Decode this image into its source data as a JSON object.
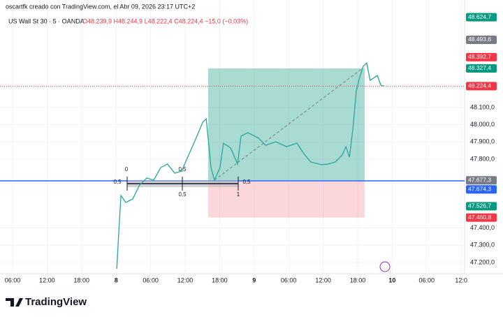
{
  "header": {
    "attribution": "oscartfk creado con TradingView.com, el Abr 09, 2026 23:17 UTC+2",
    "symbol": "US Wall St 30 · 5 · OANDA",
    "ohlc": "O48.239,9 H48.244,9 L48.222,4 C48.224,4 −15,0 (−0,03%)"
  },
  "chart_data": {
    "type": "line",
    "x": [
      3.02,
      3.08,
      3.14,
      3.28,
      3.48,
      3.68,
      3.89,
      4.09,
      4.29,
      4.49,
      4.7,
      4.9,
      5.1,
      5.3,
      5.51,
      5.61,
      5.67,
      5.75,
      5.85,
      6.01,
      6.11,
      6.32,
      6.52,
      6.62,
      6.82,
      7.13,
      7.33,
      7.63,
      7.94,
      8.24,
      8.44,
      8.64,
      8.95,
      9.15,
      9.35,
      9.55,
      9.66,
      9.76,
      9.86,
      9.96,
      10.06,
      10.16,
      10.26,
      10.36,
      10.57,
      10.67,
      10.77
    ],
    "series": [
      {
        "name": "US Wall St 30",
        "color": "#26a69a",
        "values": [
          47164,
          47386,
          47589,
          47549,
          47569,
          47650,
          47691,
          47678,
          47751,
          47772,
          47719,
          47731,
          47824,
          47914,
          48015,
          48035,
          47914,
          47751,
          47678,
          47751,
          47893,
          47865,
          47772,
          47934,
          47954,
          47922,
          47881,
          47901,
          47873,
          47893,
          47832,
          47784,
          47768,
          47772,
          47784,
          47824,
          47873,
          47812,
          47974,
          48197,
          48278,
          48339,
          48359,
          48258,
          48286,
          48230,
          48224.4
        ]
      }
    ],
    "xlim": [
      -0.2,
      12.95
    ],
    "xticks": [
      {
        "value": 0,
        "label": "06:00"
      },
      {
        "value": 1,
        "label": "12:00"
      },
      {
        "value": 2,
        "label": "18:00"
      },
      {
        "value": 3,
        "label": "8"
      },
      {
        "value": 4,
        "label": "06:00"
      },
      {
        "value": 5,
        "label": "12:00"
      },
      {
        "value": 6,
        "label": "18:00"
      },
      {
        "value": 7,
        "label": "9"
      },
      {
        "value": 8,
        "label": "06:00"
      },
      {
        "value": 9,
        "label": "12:00"
      },
      {
        "value": 10,
        "label": "18:00"
      },
      {
        "value": 11,
        "label": "10"
      },
      {
        "value": 12,
        "label": "06:00"
      },
      {
        "value": 13,
        "label": "12:0"
      }
    ],
    "ylim": [
      47135,
      48684
    ],
    "yticks": [
      {
        "value": 48100,
        "label": "48.100,0"
      },
      {
        "value": 48000,
        "label": "48.000,0"
      },
      {
        "value": 47900,
        "label": "47.900,0"
      },
      {
        "value": 47800,
        "label": "47.800,0"
      },
      {
        "value": 47400,
        "label": "47.400,0"
      },
      {
        "value": 47300,
        "label": "47.300,0"
      },
      {
        "value": 47200,
        "label": "47.200,0"
      }
    ],
    "price_labels": [
      {
        "value": 48624.7,
        "label": "48.624,7",
        "color": "#089981"
      },
      {
        "value": 48493.6,
        "label": "48.493,6",
        "color": "#787b86"
      },
      {
        "value": 48392.7,
        "label": "48.392,7",
        "color": "#f23645"
      },
      {
        "value": 48327.4,
        "label": "48.327,4",
        "color": "#089981"
      },
      {
        "value": 48224.4,
        "label": "48.224,4",
        "color": "#f23645"
      },
      {
        "value": 47677.3,
        "label": "47.677,3",
        "color": "#787b86"
      },
      {
        "value": 47674.3,
        "label": "47.674,3",
        "color": "#2962ff"
      },
      {
        "value": 47526.7,
        "label": "47.526,7",
        "color": "#089981"
      },
      {
        "value": 47460.8,
        "label": "47.460,8",
        "color": "#f23645"
      }
    ],
    "fib_labels": [
      "0",
      "0,5",
      "0,5",
      "0,5",
      "0,5",
      "1"
    ],
    "grid": true
  },
  "logo": "TradingView"
}
